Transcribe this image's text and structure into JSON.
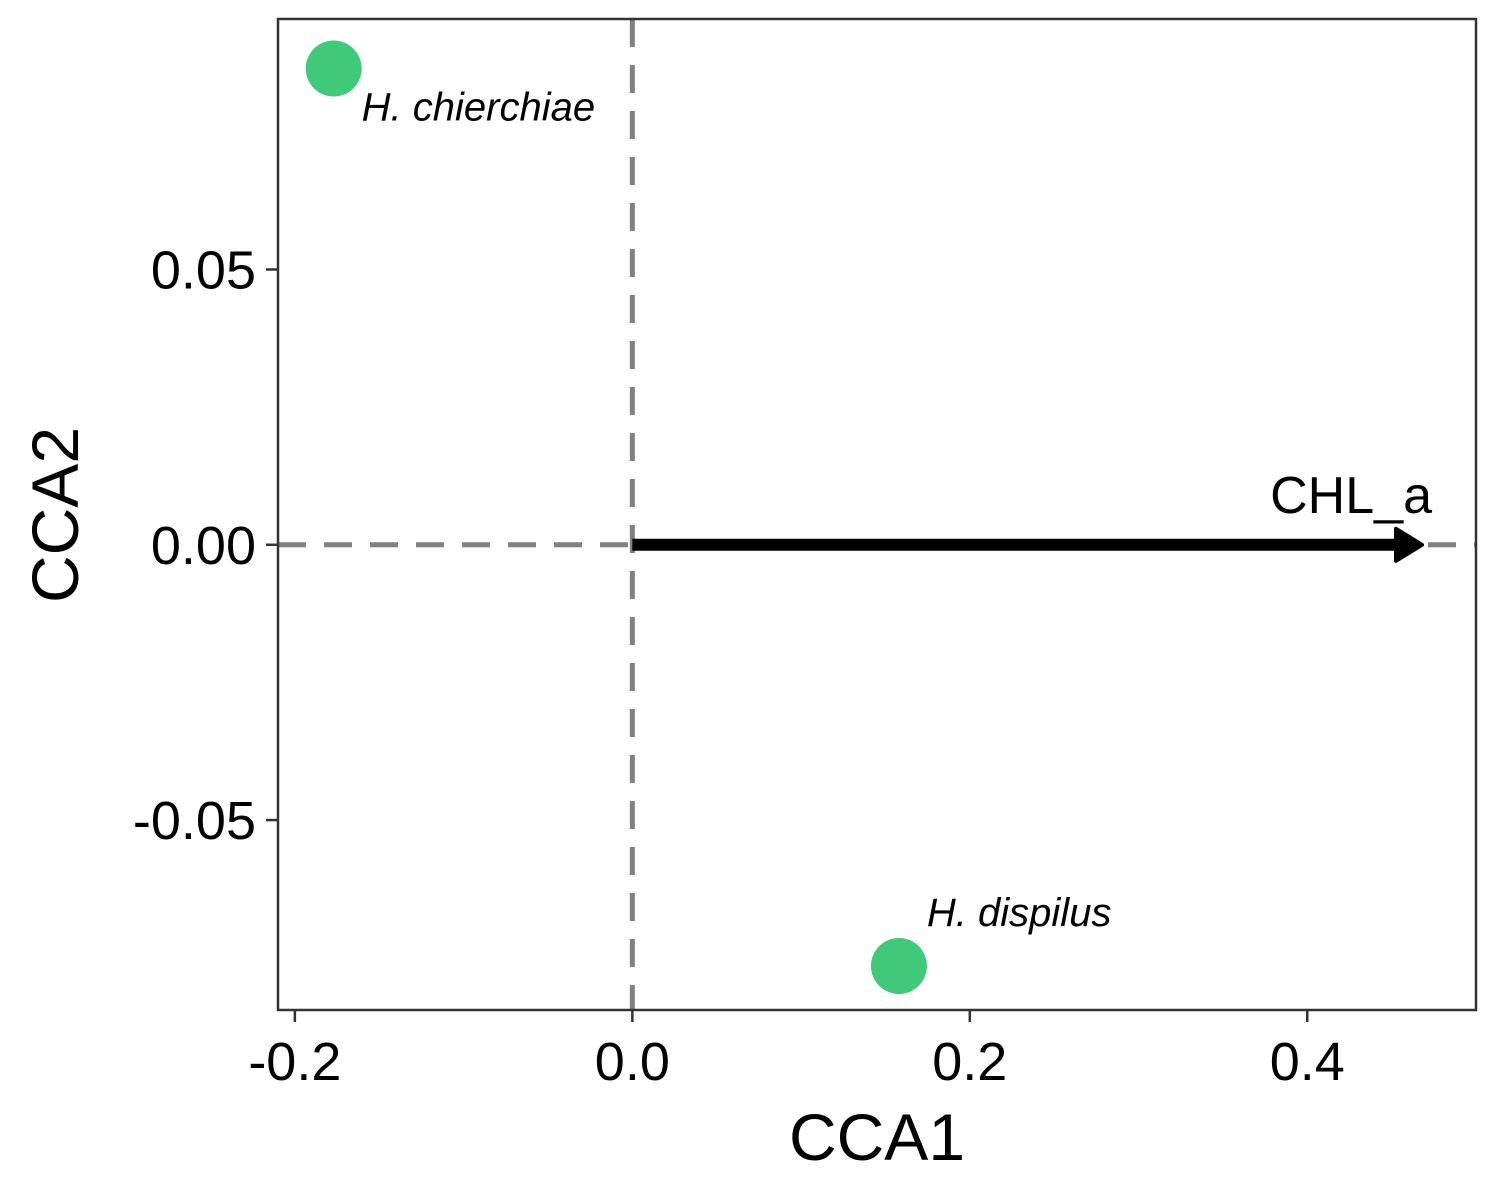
{
  "chart_data": {
    "type": "scatter",
    "title": "",
    "xlabel": "CCA1",
    "ylabel": "CCA2",
    "xlim": [
      -0.21,
      0.5
    ],
    "ylim": [
      -0.0845,
      0.0955
    ],
    "x_ticks": [
      -0.2,
      0.0,
      0.2,
      0.4
    ],
    "x_tick_labels": [
      "-0.2",
      "0.0",
      "0.2",
      "0.4"
    ],
    "y_ticks": [
      -0.05,
      0.0,
      0.05
    ],
    "y_tick_labels": [
      "-0.05",
      "0.00",
      "0.05"
    ],
    "grid": false,
    "reference_lines": {
      "x": 0,
      "y": 0,
      "style": "dashed",
      "color": "#808080"
    },
    "point_color": "#41C97A",
    "points": [
      {
        "label": "H. chierchiae",
        "x": -0.177,
        "y": 0.0865
      },
      {
        "label": "H. dispilus",
        "x": 0.158,
        "y": -0.0765
      }
    ],
    "vectors": [
      {
        "label": "CHL_a",
        "x": 0.468,
        "y": 0.0,
        "color": "#000000"
      }
    ]
  }
}
